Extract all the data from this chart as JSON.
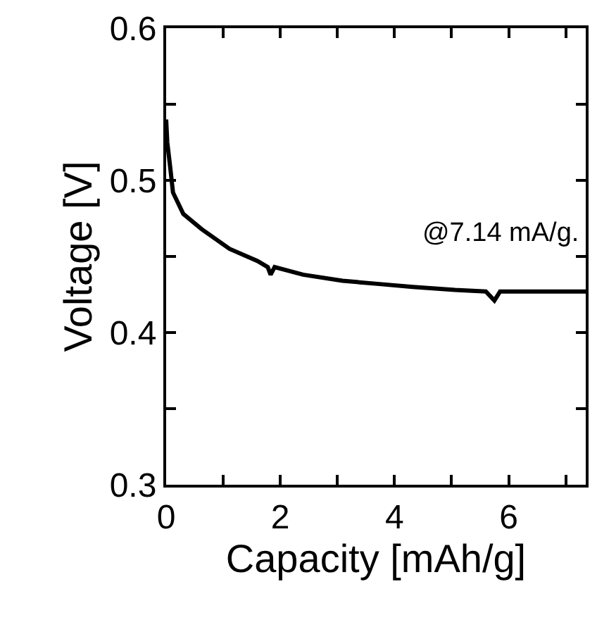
{
  "chart_data": {
    "type": "line",
    "xlabel": "Capacity [mAh/g]",
    "ylabel": "Voltage [V]",
    "x": [
      0,
      0.02,
      0.07,
      0.12,
      0.3,
      0.62,
      1.11,
      1.6,
      1.78,
      1.83,
      1.9,
      2.4,
      3.09,
      3.7,
      4.32,
      5.06,
      5.6,
      5.75,
      5.85,
      6.5,
      7.35
    ],
    "series": [
      {
        "color": "#000000",
        "values": [
          0.54,
          0.525,
          0.509,
          0.492,
          0.478,
          0.468,
          0.455,
          0.447,
          0.443,
          0.438,
          0.443,
          0.438,
          0.434,
          0.432,
          0.43,
          0.428,
          0.427,
          0.421,
          0.427,
          0.427,
          0.427
        ]
      }
    ],
    "xlim": [
      0,
      7.35
    ],
    "ylim": [
      0.3,
      0.6
    ],
    "xticks": [
      0,
      {
        "value": 1,
        "label": null
      },
      2,
      {
        "value": 3,
        "label": null
      },
      4,
      {
        "value": 5,
        "label": null
      },
      6,
      {
        "value": 7,
        "label": null
      }
    ],
    "yticks": [
      0.3,
      {
        "value": 0.35,
        "label": null
      },
      0.4,
      {
        "value": 0.45,
        "label": null
      },
      0.5,
      {
        "value": 0.55,
        "label": null
      },
      0.6
    ],
    "annotations": [
      "@7.14 mA/g."
    ],
    "marker": "none",
    "line_style": "solid"
  }
}
